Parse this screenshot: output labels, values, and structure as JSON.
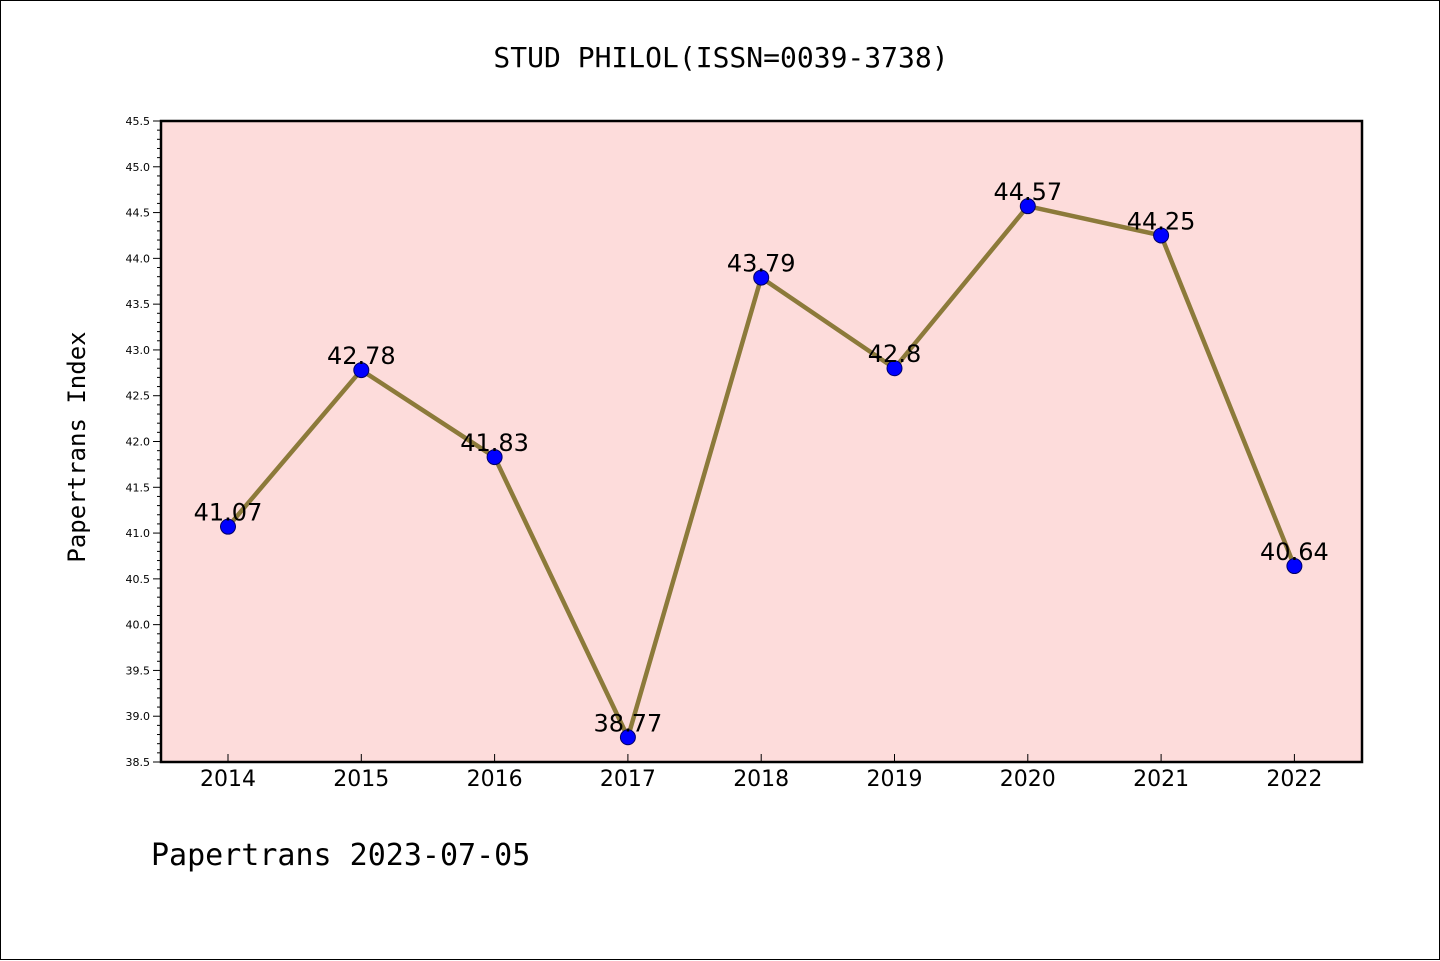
{
  "chart_data": {
    "type": "line",
    "title": "STUD PHILOL(ISSN=0039-3738)",
    "xlabel": "",
    "ylabel": "Papertrans Index",
    "footer": "Papertrans 2023-07-05",
    "categories": [
      "2014",
      "2015",
      "2016",
      "2017",
      "2018",
      "2019",
      "2020",
      "2021",
      "2022"
    ],
    "values": [
      41.07,
      42.78,
      41.83,
      38.77,
      43.79,
      42.8,
      44.57,
      44.25,
      40.64
    ],
    "data_labels": [
      "41.07",
      "42.78",
      "41.83",
      "38.77",
      "43.79",
      "42.8",
      "44.57",
      "44.25",
      "40.64"
    ],
    "ylim": [
      38.5,
      45.5
    ],
    "yticks": [
      "38.5",
      "39.0",
      "39.5",
      "40.0",
      "40.5",
      "41.0",
      "41.5",
      "42.0",
      "42.5",
      "43.0",
      "43.5",
      "44.0",
      "44.5",
      "45.0",
      "45.5"
    ],
    "grid": false,
    "colors": {
      "plot_background": "#fddcdb",
      "line": "#8c7a3a",
      "marker": "#0000ff"
    }
  }
}
